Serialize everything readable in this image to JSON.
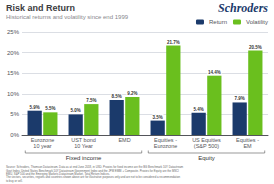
{
  "chart_data": {
    "type": "bar",
    "title": "Risk and Return",
    "subtitle": "Historical returns and volatility since end 1999",
    "logo": "Schroders",
    "categories": [
      "Eurozone\n10 year",
      "UST bond\n10 Year",
      "EMD",
      "Equities -\nEurozone",
      "US Equities\n(S&P 500)",
      "Equities -\nEM"
    ],
    "series": [
      {
        "name": "Return",
        "color": "#1b3a6b",
        "values": [
          5.9,
          5.0,
          8.5,
          3.5,
          5.4,
          7.9
        ],
        "value_labels": [
          "5.9%",
          "5.0%",
          "8.5%",
          "3.5%",
          "5.4%",
          "7.9%"
        ]
      },
      {
        "name": "Volatility",
        "color": "#6abf1e",
        "values": [
          5.5,
          7.5,
          9.2,
          21.7,
          14.4,
          20.5
        ],
        "value_labels": [
          "5.5%",
          "7.5%",
          "9.2%",
          "21.7%",
          "14.4%",
          "20.5%"
        ]
      }
    ],
    "ylim": [
      0,
      25
    ],
    "yticks": [
      {
        "value": 0,
        "label": "0%"
      },
      {
        "value": 5,
        "label": "5%"
      },
      {
        "value": 10,
        "label": "10%"
      },
      {
        "value": 15,
        "label": "15%"
      },
      {
        "value": 20,
        "label": "20%"
      },
      {
        "value": 25,
        "label": "25%"
      }
    ],
    "grid": true,
    "data_labels": true,
    "legend": "upper right",
    "groups": [
      {
        "label": "Fixed income",
        "categories": [
          "Eurozone\n10 year",
          "UST bond\n10 Year",
          "EMD"
        ]
      },
      {
        "label": "Equity",
        "categories": [
          "Equities -\nEurozone",
          "US Equities\n(S&P 500)",
          "Equities -\nEM"
        ]
      }
    ],
    "source": "Source: Schroders, Thomson Datastream. Data as at end June 2018, in USD. Proxies for fixed income are the BG Benchmark 10Y Datastream\nGovt Index, United States Benchmark 10Y Datastream Government Index and the JPM EMBI + Composite. Proxies for Equity are the MSCI\nEMU, S&P 500 and the Emerging Markets Datastream Market, Total Return Indices.\nThe sectors, securities, regions and countries shown above are for illustrative purposes only and are not to be considered a recommendation\nto buy or sell."
  }
}
